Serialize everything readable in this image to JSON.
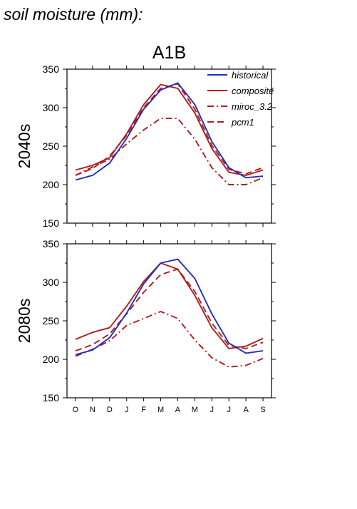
{
  "page": {
    "heading": "soil moisture (mm):",
    "scenario": "A1B"
  },
  "legend": {
    "placement": "top-right",
    "entries": [
      {
        "name": "historical",
        "color": "#1f2fbf",
        "style": "solid"
      },
      {
        "name": "composite",
        "color": "#b31b1b",
        "style": "solid"
      },
      {
        "name": "miroc_3.2",
        "color": "#b31b1b",
        "style": "dash-dot"
      },
      {
        "name": "pcm1",
        "color": "#b31b1b",
        "style": "dashed"
      }
    ]
  },
  "chart_data": [
    {
      "type": "line",
      "title": "A1B",
      "ylabel": "2040s",
      "xlabel": "",
      "categories": [
        "O",
        "N",
        "D",
        "J",
        "F",
        "M",
        "A",
        "M",
        "J",
        "J",
        "A",
        "S"
      ],
      "ylim": [
        150,
        350
      ],
      "yticks": [
        150,
        200,
        250,
        300,
        350
      ],
      "grid": false,
      "legend": "top-right",
      "series": [
        {
          "name": "historical",
          "color": "#1f2fbf",
          "style": "solid",
          "values": [
            206,
            212,
            228,
            260,
            298,
            323,
            332,
            304,
            256,
            222,
            209,
            211
          ]
        },
        {
          "name": "composite",
          "color": "#b31b1b",
          "style": "solid",
          "values": [
            219,
            225,
            235,
            266,
            304,
            330,
            325,
            293,
            247,
            216,
            212,
            219
          ]
        },
        {
          "name": "miroc_3.2",
          "color": "#b31b1b",
          "style": "dash-dot",
          "values": [
            212,
            223,
            233,
            253,
            271,
            286,
            286,
            259,
            222,
            200,
            200,
            209
          ]
        },
        {
          "name": "pcm1",
          "color": "#b31b1b",
          "style": "dashed",
          "values": [
            212,
            221,
            237,
            264,
            300,
            325,
            331,
            298,
            251,
            220,
            214,
            222
          ]
        }
      ]
    },
    {
      "type": "line",
      "title": "",
      "ylabel": "2080s",
      "xlabel": "",
      "categories": [
        "O",
        "N",
        "D",
        "J",
        "F",
        "M",
        "A",
        "M",
        "J",
        "J",
        "A",
        "S"
      ],
      "ylim": [
        150,
        350
      ],
      "yticks": [
        150,
        200,
        250,
        300,
        350
      ],
      "grid": false,
      "series": [
        {
          "name": "historical",
          "color": "#1f2fbf",
          "style": "solid",
          "values": [
            206,
            212,
            228,
            260,
            298,
            325,
            330,
            305,
            259,
            221,
            208,
            211
          ]
        },
        {
          "name": "composite",
          "color": "#b31b1b",
          "style": "solid",
          "values": [
            226,
            235,
            241,
            269,
            301,
            325,
            317,
            283,
            241,
            214,
            217,
            227
          ]
        },
        {
          "name": "miroc_3.2",
          "color": "#b31b1b",
          "style": "dash-dot",
          "values": [
            204,
            213,
            224,
            244,
            253,
            262,
            253,
            225,
            202,
            190,
            192,
            201
          ]
        },
        {
          "name": "pcm1",
          "color": "#b31b1b",
          "style": "dashed",
          "values": [
            211,
            219,
            233,
            259,
            287,
            310,
            317,
            288,
            247,
            218,
            214,
            222
          ]
        }
      ]
    }
  ]
}
